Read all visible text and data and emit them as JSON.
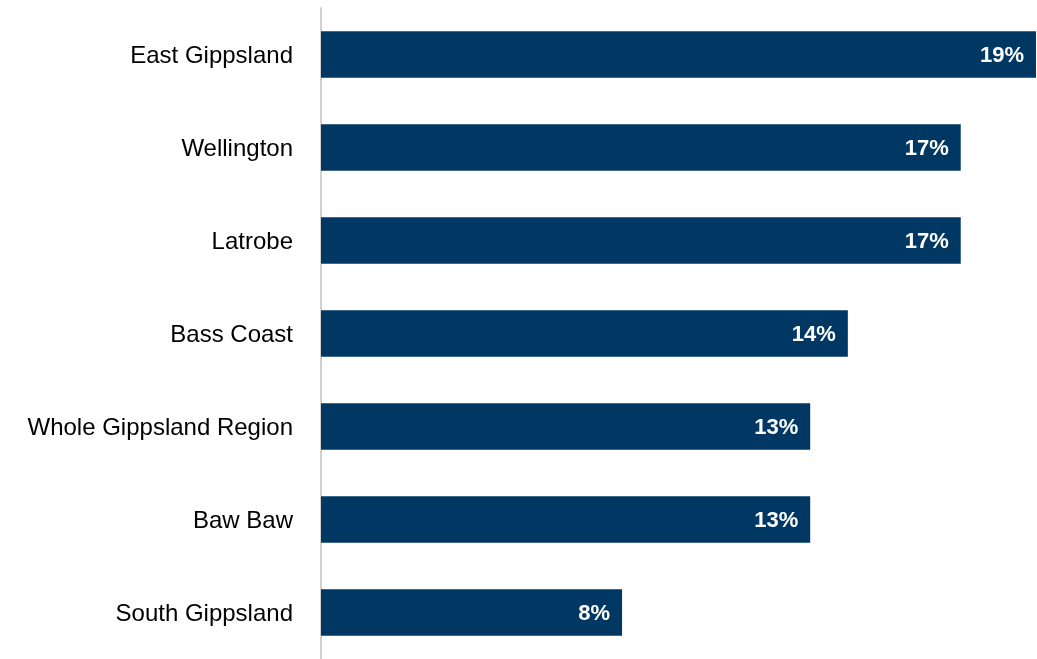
{
  "chart_data": {
    "type": "bar",
    "orientation": "horizontal",
    "categories": [
      "East Gippsland",
      "Wellington",
      "Latrobe",
      "Bass Coast",
      "Whole Gippsland Region",
      "Baw Baw",
      "South Gippsland"
    ],
    "values": [
      19,
      17,
      17,
      14,
      13,
      13,
      8
    ],
    "value_labels": [
      "19%",
      "17%",
      "17%",
      "14%",
      "13%",
      "13%",
      "8%"
    ],
    "color": "#003863",
    "xlim": [
      0,
      19
    ],
    "tick_labels": "y"
  }
}
